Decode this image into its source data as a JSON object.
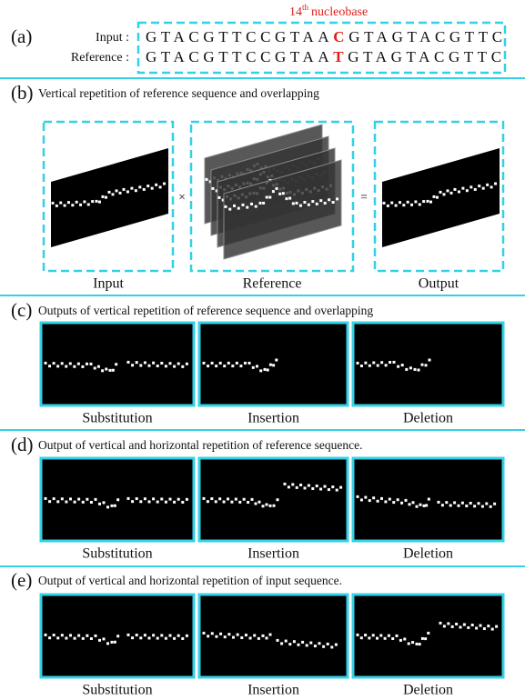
{
  "panel_a": {
    "label": "(a)",
    "annotation": {
      "number": "14",
      "suffix": "th",
      "text": "nucleobase"
    },
    "rows": [
      {
        "label": "Input :",
        "before": "GTACGTTCCGTAA",
        "marked": "C",
        "after": "GTAGTACGTTC"
      },
      {
        "label": "Reference :",
        "before": "GTACGTTCCGTAA",
        "marked": "T",
        "after": "GTAGTACGTTC"
      }
    ]
  },
  "panel_b": {
    "label": "(b)",
    "title": "Vertical repetition of reference sequence and overlapping",
    "items": [
      "Input",
      "Reference",
      "Output"
    ],
    "operators": [
      "×",
      "="
    ]
  },
  "panel_c": {
    "label": "(c)",
    "title": "Outputs of vertical repetition of reference sequence and overlapping",
    "items": [
      "Substitution",
      "Insertion",
      "Deletion"
    ]
  },
  "panel_d": {
    "label": "(d)",
    "title": "Output of vertical and horizontal repetition of reference sequence.",
    "items": [
      "Substitution",
      "Insertion",
      "Deletion"
    ]
  },
  "panel_e": {
    "label": "(e)",
    "title": "Output of vertical and horizontal repetition of input sequence.",
    "items": [
      "Substitution",
      "Insertion",
      "Deletion"
    ]
  }
}
